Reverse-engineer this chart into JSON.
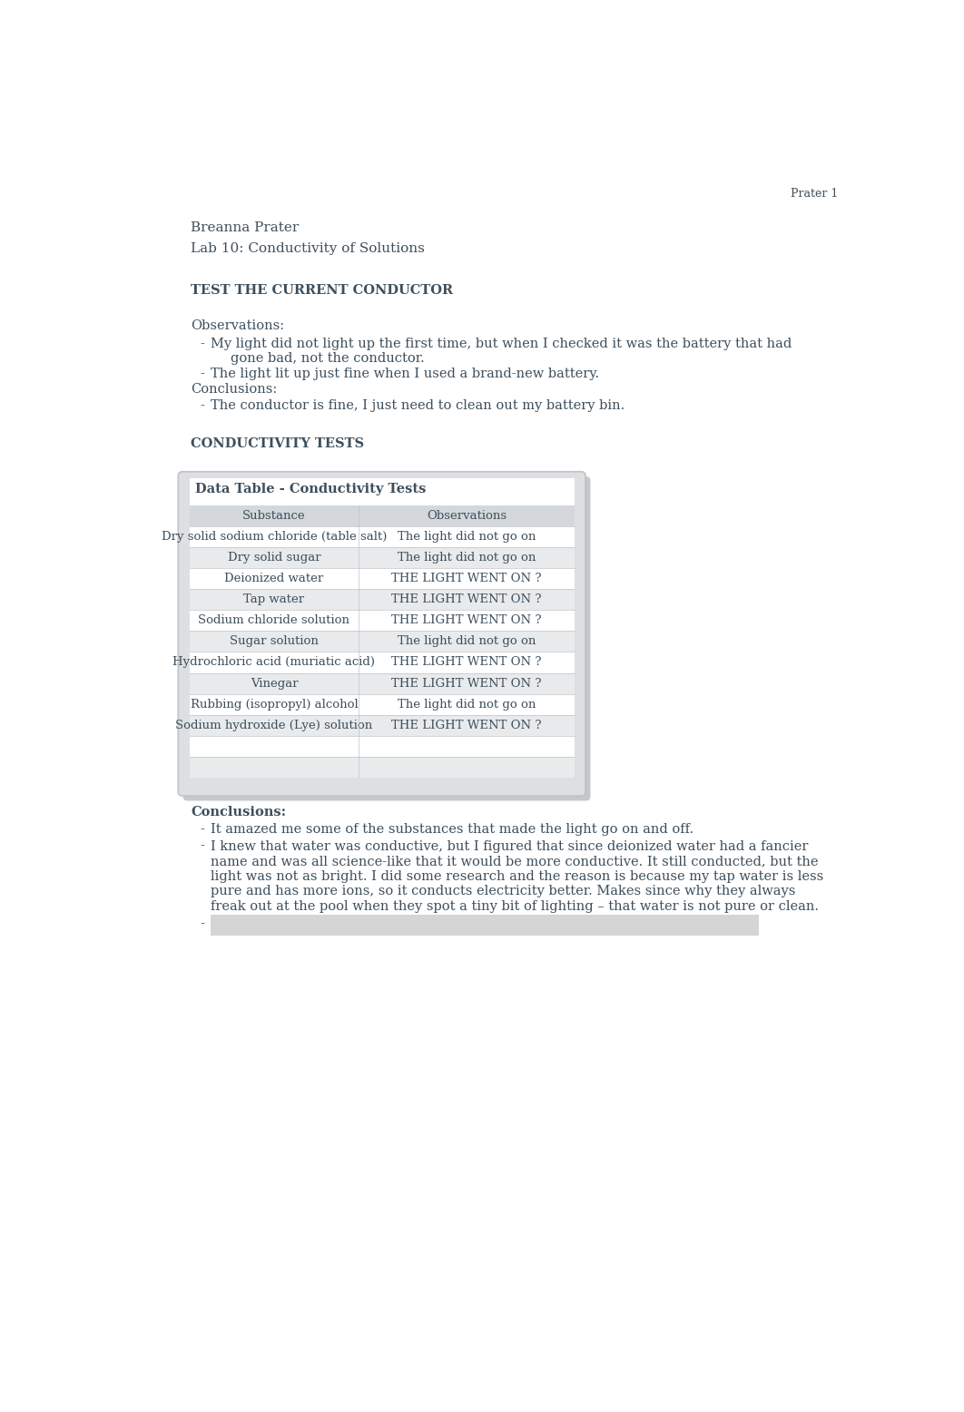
{
  "page_width": 10.62,
  "page_height": 15.56,
  "dpi": 100,
  "bg_color": "#ffffff",
  "text_color": "#3d4f5c",
  "header_right": "Prater 1",
  "author": "Breanna Prater",
  "lab_title": "Lab 10: Conductivity of Solutions",
  "section1_title": "TEST THE CURRENT CONDUCTOR",
  "observations_label": "Observations:",
  "conclusions_label1": "Conclusions:",
  "conc_bullet1": "The conductor is fine, I just need to clean out my battery bin.",
  "section2_title": "CONDUCTIVITY TESTS",
  "table_title": "Data Table - Conductivity Tests",
  "table_headers": [
    "Substance",
    "Observations"
  ],
  "table_rows": [
    [
      "Dry solid sodium chloride (table salt)",
      "The light did not go on"
    ],
    [
      "Dry solid sugar",
      "The light did not go on"
    ],
    [
      "Deionized water",
      "THE LIGHT WENT ON ?"
    ],
    [
      "Tap water",
      "THE LIGHT WENT ON ?"
    ],
    [
      "Sodium chloride solution",
      "THE LIGHT WENT ON ?"
    ],
    [
      "Sugar solution",
      "The light did not go on"
    ],
    [
      "Hydrochloric acid (muriatic acid)",
      "THE LIGHT WENT ON ?"
    ],
    [
      "Vinegar",
      "THE LIGHT WENT ON ?"
    ],
    [
      "Rubbing (isopropyl) alcohol",
      "The light did not go on"
    ],
    [
      "Sodium hydroxide (Lye) solution",
      "THE LIGHT WENT ON ?"
    ],
    [
      "",
      ""
    ],
    [
      "",
      ""
    ]
  ],
  "conclusions_label2": "Conclusions:",
  "conc2_bullet1": "It amazed me some of the substances that made the light go on and off.",
  "conc2_bullet2_lines": [
    "I knew that water was conductive, but I figured that since deionized water had a fancier",
    "name and was all science-like that it would be more conductive. It still conducted, but the",
    "light was not as bright. I did some research and the reason is because my tap water is less",
    "pure and has more ions, so it conducts electricity better. Makes since why they always",
    "freak out at the pool when they spot a tiny bit of lighting – that water is not pure or clean."
  ],
  "obs_bullet1_line1": "My light did not light up the first time, but when I checked it was the battery that had",
  "obs_bullet1_line2": "gone bad, not the conductor.",
  "obs_bullet2": "The light lit up just fine when I used a brand-new battery.",
  "table_outer_bg": "#dddfe2",
  "table_inner_bg": "#ffffff",
  "table_row_alt_bg": "#e8eaec",
  "table_header_bg": "#d4d7db",
  "table_border_color": "#c0c3c7",
  "table_shadow_color": "#c5c7ca",
  "redact_color": "#c8c8c8",
  "font_main": 10.5,
  "font_section": 10.5,
  "font_table": 9.5
}
